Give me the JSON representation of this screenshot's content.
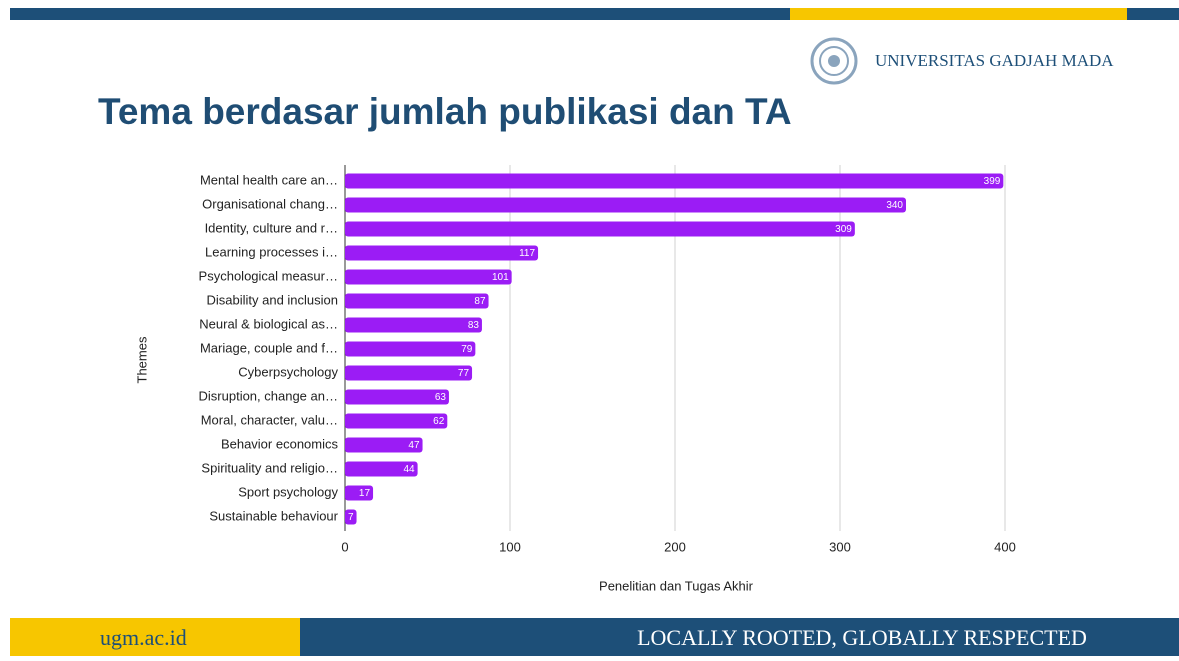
{
  "slide": {
    "university": "UNIVERSITAS GADJAH MADA",
    "title": "Tema berdasar jumlah publikasi dan TA",
    "footer_left": "ugm.ac.id",
    "footer_right": "LOCALLY ROOTED, GLOBALLY RESPECTED"
  },
  "chart_data": {
    "type": "barh",
    "categories": [
      "Mental health care an…",
      "Organisational chang…",
      "Identity, culture and r…",
      "Learning processes i…",
      "Psychological measur…",
      "Disability and inclusion",
      "Neural & biological as…",
      "Mariage, couple and f…",
      "Cyberpsychology",
      "Disruption, change an…",
      "Moral, character, valu…",
      "Behavior economics",
      "Spirituality and religio…",
      "Sport psychology",
      "Sustainable behaviour"
    ],
    "values": [
      399,
      340,
      309,
      117,
      101,
      87,
      83,
      79,
      77,
      63,
      62,
      47,
      44,
      17,
      7
    ],
    "color": "#9b1cf5",
    "xlim": [
      0,
      400
    ],
    "xticks": [
      0,
      100,
      200,
      300,
      400
    ],
    "grid": true,
    "xlabel": "Penelitian dan Tugas Akhir",
    "ylabel": "Themes"
  }
}
